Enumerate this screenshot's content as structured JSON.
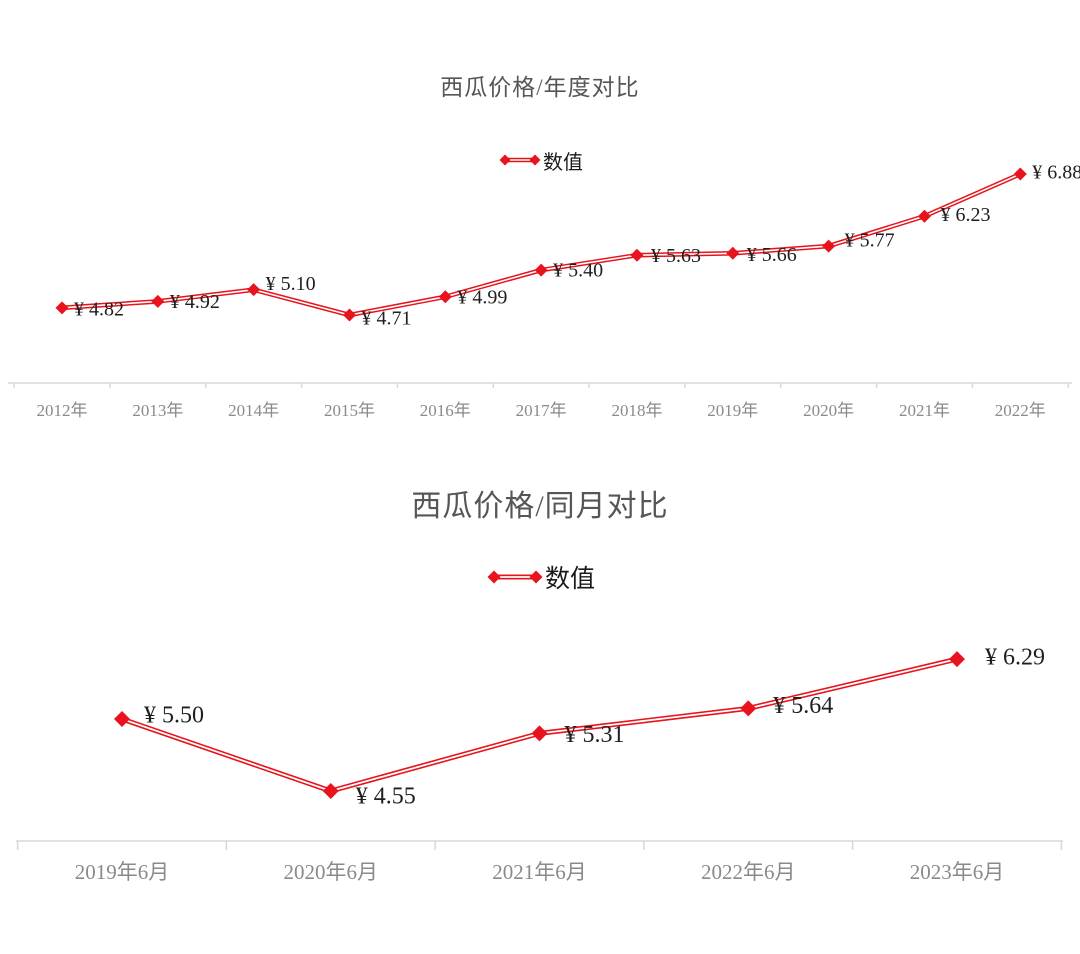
{
  "colors": {
    "line_red": "#e8131c",
    "title_gray": "#565656",
    "data_label": "#1f1f1f",
    "axis_label_gray": "#8a8a8a",
    "axis_line_gray": "#d8d8d8"
  },
  "chart_data": [
    {
      "type": "line",
      "title": "西瓜价格/年度对比",
      "legend": "数值",
      "legend_position": "top-center",
      "grid": false,
      "marker": "diamond",
      "line_style": "double-red-with-white-core",
      "currency_prefix": "¥",
      "categories": [
        "2012年",
        "2013年",
        "2014年",
        "2015年",
        "2016年",
        "2017年",
        "2018年",
        "2019年",
        "2020年",
        "2021年",
        "2022年"
      ],
      "values": [
        4.82,
        4.92,
        5.1,
        4.71,
        4.99,
        5.4,
        5.63,
        5.66,
        5.77,
        6.23,
        6.88
      ],
      "data_labels": [
        "¥ 4.82",
        "¥ 4.92",
        "¥ 5.10",
        "¥ 4.71",
        "¥ 4.99",
        "¥ 5.40",
        "¥ 5.63",
        "¥ 5.66",
        "¥ 5.77",
        "¥ 6.23",
        "¥ 6.88"
      ],
      "xlabel": "",
      "ylabel": "",
      "ylim": [
        3.66,
        7.4
      ]
    },
    {
      "type": "line",
      "title": "西瓜价格/同月对比",
      "legend": "数值",
      "legend_position": "top-center",
      "grid": false,
      "marker": "diamond",
      "line_style": "double-red-with-white-core",
      "currency_prefix": "¥",
      "categories": [
        "2019年6月",
        "2020年6月",
        "2021年6月",
        "2022年6月",
        "2023年6月"
      ],
      "values": [
        5.5,
        4.55,
        5.31,
        5.64,
        6.29
      ],
      "data_labels": [
        "¥ 5.50",
        "¥ 4.55",
        "¥ 5.31",
        "¥ 5.64",
        "¥ 6.29"
      ],
      "xlabel": "",
      "ylabel": "",
      "ylim": [
        3.89,
        6.85
      ]
    }
  ]
}
